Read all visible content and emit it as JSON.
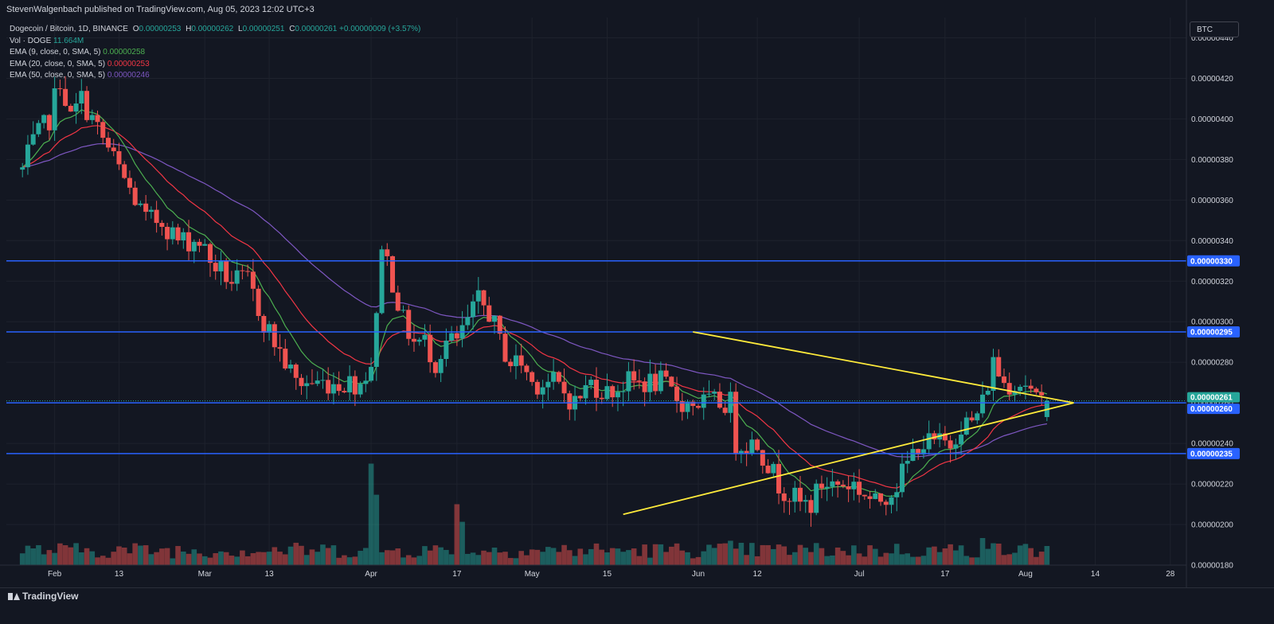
{
  "header": {
    "publisher_line": "StevenWalgenbach published on TradingView.com, Aug 05, 2023 12:02 UTC+3"
  },
  "legend": {
    "symbol": "Dogecoin / Bitcoin, 1D, BINANCE",
    "open_label": "O",
    "open_value": "0.00000253",
    "high_label": "H",
    "high_value": "0.00000262",
    "low_label": "L",
    "low_value": "0.00000251",
    "close_label": "C",
    "close_value": "0.00000261",
    "change": "+0.00000009 (+3.57%)",
    "volume_label": "Vol · DOGE",
    "volume_value": "11.664M",
    "ema9_label": "EMA (9, close, 0, SMA, 5)",
    "ema9_value": "0.00000258",
    "ema20_label": "EMA (20, close, 0, SMA, 5)",
    "ema20_value": "0.00000253",
    "ema50_label": "EMA (50, close, 0, SMA, 5)",
    "ema50_value": "0.00000246"
  },
  "toolbar": {
    "currency": "BTC"
  },
  "footer": {
    "brand": "TradingView"
  },
  "colors": {
    "background": "#131722",
    "grid": "#1e222d",
    "up": "#26a69a",
    "down": "#ef5350",
    "ema9": "#4caf50",
    "ema20": "#f23645",
    "ema50": "#7e57c2",
    "level_line": "#2962ff",
    "triangle": "#ffeb3b"
  },
  "chart_data": {
    "type": "candlestick",
    "title": "Dogecoin / Bitcoin, 1D, BINANCE",
    "y_range": [
      1.8e-06,
      4.5e-06
    ],
    "y_ticks": [
      "0.00000180",
      "0.00000200",
      "0.00000220",
      "0.00000240",
      "0.00000260",
      "0.00000280",
      "0.00000300",
      "0.00000320",
      "0.00000340",
      "0.00000360",
      "0.00000380",
      "0.00000400",
      "0.00000420",
      "0.00000440"
    ],
    "x_ticks": [
      "Feb",
      "13",
      "Mar",
      "13",
      "Apr",
      "17",
      "May",
      "15",
      "Jun",
      "12",
      "Jul",
      "17",
      "Aug",
      "14",
      "28"
    ],
    "x_tick_days": [
      31,
      43,
      59,
      71,
      90,
      106,
      120,
      134,
      151,
      162,
      181,
      197,
      212,
      225,
      239
    ],
    "first_candle_day": 25,
    "last_candle_day": 216,
    "horizontal_levels": [
      {
        "price": 3.3e-06,
        "label": "0.00000330"
      },
      {
        "price": 2.95e-06,
        "label": "0.00000295"
      },
      {
        "price": 2.6e-06,
        "label": "0.00000260"
      },
      {
        "price": 2.35e-06,
        "label": "0.00000235"
      }
    ],
    "current_price": {
      "price": 2.61e-06,
      "label": "0.00000261"
    },
    "triangle": {
      "upper": [
        [
          150,
          2.95e-06
        ],
        [
          221,
          2.6e-06
        ]
      ],
      "lower": [
        [
          137,
          2.05e-06
        ],
        [
          221,
          2.6e-06
        ]
      ]
    },
    "anchors": [
      [
        25,
        3.75e-06
      ],
      [
        27,
        3.88e-06
      ],
      [
        30,
        4e-06
      ],
      [
        32,
        4.2e-06
      ],
      [
        34,
        4e-06
      ],
      [
        36,
        4.1e-06
      ],
      [
        38,
        4e-06
      ],
      [
        40,
        3.9e-06
      ],
      [
        42,
        3.8e-06
      ],
      [
        44,
        3.7e-06
      ],
      [
        46,
        3.6e-06
      ],
      [
        48,
        3.5e-06
      ],
      [
        51,
        3.5e-06
      ],
      [
        54,
        3.4e-06
      ],
      [
        56,
        3.4e-06
      ],
      [
        58,
        3.4e-06
      ],
      [
        60,
        3.3e-06
      ],
      [
        64,
        3.2e-06
      ],
      [
        67,
        3.2e-06
      ],
      [
        70,
        3e-06
      ],
      [
        72,
        2.9e-06
      ],
      [
        74,
        2.8e-06
      ],
      [
        76,
        2.7e-06
      ],
      [
        78,
        2.7e-06
      ],
      [
        80,
        2.7e-06
      ],
      [
        82,
        2.7e-06
      ],
      [
        84,
        2.7e-06
      ],
      [
        86,
        2.7e-06
      ],
      [
        88,
        2.7e-06
      ],
      [
        90,
        2.8e-06
      ],
      [
        91,
        3e-06
      ],
      [
        92,
        3.4e-06
      ],
      [
        93,
        3.3e-06
      ],
      [
        94,
        3.2e-06
      ],
      [
        96,
        3e-06
      ],
      [
        98,
        2.9e-06
      ],
      [
        100,
        2.9e-06
      ],
      [
        102,
        2.8e-06
      ],
      [
        104,
        2.9e-06
      ],
      [
        106,
        2.9e-06
      ],
      [
        108,
        3e-06
      ],
      [
        110,
        3.1e-06
      ],
      [
        112,
        3.05e-06
      ],
      [
        114,
        2.9e-06
      ],
      [
        116,
        2.8e-06
      ],
      [
        118,
        2.8e-06
      ],
      [
        120,
        2.7e-06
      ],
      [
        124,
        2.7e-06
      ],
      [
        128,
        2.6e-06
      ],
      [
        131,
        2.7e-06
      ],
      [
        134,
        2.65e-06
      ],
      [
        138,
        2.7e-06
      ],
      [
        140,
        2.7e-06
      ],
      [
        144,
        2.7e-06
      ],
      [
        148,
        2.6e-06
      ],
      [
        152,
        2.6e-06
      ],
      [
        156,
        2.6e-06
      ],
      [
        157,
        2.6e-06
      ],
      [
        158,
        2.4e-06
      ],
      [
        160,
        2.4e-06
      ],
      [
        162,
        2.4e-06
      ],
      [
        164,
        2.3e-06
      ],
      [
        166,
        2.2e-06
      ],
      [
        168,
        2.15e-06
      ],
      [
        170,
        2.1e-06
      ],
      [
        172,
        2.1e-06
      ],
      [
        174,
        2.2e-06
      ],
      [
        176,
        2.2e-06
      ],
      [
        178,
        2.2e-06
      ],
      [
        180,
        2.2e-06
      ],
      [
        182,
        2.15e-06
      ],
      [
        184,
        2.1e-06
      ],
      [
        186,
        2.15e-06
      ],
      [
        188,
        2.2e-06
      ],
      [
        190,
        2.3e-06
      ],
      [
        192,
        2.4e-06
      ],
      [
        194,
        2.4e-06
      ],
      [
        196,
        2.4e-06
      ],
      [
        198,
        2.4e-06
      ],
      [
        200,
        2.5e-06
      ],
      [
        202,
        2.5e-06
      ],
      [
        204,
        2.6e-06
      ],
      [
        206,
        2.8e-06
      ],
      [
        208,
        2.7e-06
      ],
      [
        210,
        2.7e-06
      ],
      [
        212,
        2.7e-06
      ],
      [
        214,
        2.6e-06
      ],
      [
        216,
        2.61e-06
      ]
    ],
    "volume_spikes": {
      "90": 0.75,
      "91": 0.52,
      "106": 0.45,
      "107": 0.32,
      "157": 0.18,
      "184": 0.12,
      "204": 0.2,
      "205": 0.12
    }
  }
}
